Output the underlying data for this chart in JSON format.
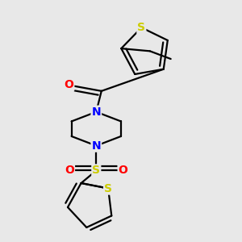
{
  "background_color": "#e8e8e8",
  "bond_color": "#000000",
  "S_color": "#cccc00",
  "N_color": "#0000ff",
  "O_color": "#ff0000",
  "line_width": 1.6,
  "figsize": [
    3.0,
    3.0
  ],
  "dpi": 100,
  "xlim": [
    0.1,
    0.9
  ],
  "ylim": [
    0.05,
    0.97
  ]
}
